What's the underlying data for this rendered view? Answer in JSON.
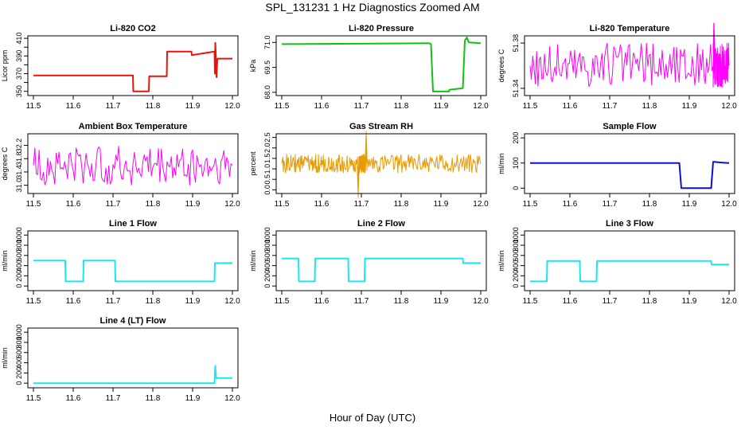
{
  "figure": {
    "title": "SPL_131231  1 Hz Diagnostics Zoomed AM",
    "xlabel": "Hour of Day (UTC)"
  },
  "chart_data": [
    {
      "id": "co2",
      "type": "line",
      "title": "Li-820 CO2",
      "xlabel": "",
      "ylabel": "Licor ppm",
      "color": "#e8140c",
      "noise": 0,
      "xlim": [
        11.5,
        12.0
      ],
      "xticks": [
        11.5,
        11.6,
        11.7,
        11.8,
        11.9,
        12.0
      ],
      "xtick_labels": [
        "11.5",
        "11.6",
        "11.7",
        "11.8",
        "11.9",
        "12.0"
      ],
      "ylim": [
        347,
        411
      ],
      "yticks": [
        350,
        360,
        370,
        380,
        390,
        400,
        410
      ],
      "ytick_labels": [
        "350",
        "",
        "370",
        "",
        "390",
        "",
        "410"
      ],
      "x": [
        11.5,
        11.75,
        11.751,
        11.79,
        11.791,
        11.835,
        11.836,
        11.897,
        11.898,
        11.955,
        11.956,
        11.957,
        11.958,
        11.96,
        11.962,
        11.963,
        12.0
      ],
      "y": [
        368,
        368,
        350,
        350,
        367,
        367,
        395,
        395,
        391,
        395,
        370,
        405,
        395,
        366,
        385,
        387,
        387
      ]
    },
    {
      "id": "pressure",
      "type": "line",
      "title": "Li-820 Pressure",
      "xlabel": "",
      "ylabel": "kPa",
      "color": "#12c212",
      "noise": 0,
      "xlim": [
        11.5,
        12.0
      ],
      "xticks": [
        11.5,
        11.6,
        11.7,
        11.8,
        11.9,
        12.0
      ],
      "xtick_labels": [
        "11.5",
        "11.6",
        "11.7",
        "11.8",
        "11.9",
        "12.0"
      ],
      "ylim": [
        67.9,
        71.3
      ],
      "yticks": [
        68.0,
        69.5,
        71.0
      ],
      "ytick_labels": [
        "68.0",
        "69.5",
        "71.0"
      ],
      "x": [
        11.5,
        11.87,
        11.875,
        11.88,
        11.92,
        11.921,
        11.955,
        11.96,
        11.965,
        11.97,
        12.0
      ],
      "y": [
        70.9,
        70.95,
        70.9,
        68.05,
        68.05,
        68.15,
        68.25,
        71.1,
        71.3,
        71.0,
        70.95
      ]
    },
    {
      "id": "li820_temp",
      "type": "line",
      "title": "Li-820 Temperature",
      "xlabel": "",
      "ylabel": "degrees C",
      "color": "#ff00ff",
      "noise": 0.02,
      "xlim": [
        11.5,
        12.0
      ],
      "xticks": [
        11.5,
        11.6,
        11.7,
        11.8,
        11.9,
        12.0
      ],
      "xtick_labels": [
        "11.5",
        "11.6",
        "11.7",
        "11.8",
        "11.9",
        "12.0"
      ],
      "ylim": [
        51.335,
        51.385
      ],
      "yticks": [
        51.34,
        51.38
      ],
      "ytick_labels": [
        "51.34",
        "51.38"
      ],
      "x": [
        11.5,
        11.96,
        11.962,
        11.964,
        12.0
      ],
      "y": [
        51.36,
        51.36,
        51.382,
        51.36,
        51.36
      ]
    },
    {
      "id": "box_temp",
      "type": "line",
      "title": "Ambient Box Temperature",
      "xlabel": "",
      "ylabel": "degrees C",
      "color": "#ff00ff",
      "noise": 0.6,
      "xlim": [
        11.5,
        12.0
      ],
      "xticks": [
        11.5,
        11.6,
        11.7,
        11.8,
        11.9,
        12.0
      ],
      "xtick_labels": [
        "11.5",
        "11.6",
        "11.7",
        "11.8",
        "11.9",
        "12.0"
      ],
      "ylim": [
        30.8,
        32.5
      ],
      "yticks": [
        31.0,
        31.4,
        31.8,
        32.2
      ],
      "ytick_labels": [
        "31.0",
        "31.4",
        "31.8",
        "32.2"
      ],
      "x": [
        11.5,
        12.0
      ],
      "y": [
        31.6,
        31.6
      ]
    },
    {
      "id": "rh",
      "type": "line",
      "title": "Gas Stream RH",
      "xlabel": "",
      "ylabel": "percent",
      "color": "#e89a00",
      "noise": 0.45,
      "xlim": [
        11.5,
        12.0
      ],
      "xticks": [
        11.5,
        11.6,
        11.7,
        11.8,
        11.9,
        12.0
      ],
      "xtick_labels": [
        "11.5",
        "11.6",
        "11.7",
        "11.8",
        "11.9",
        "12.0"
      ],
      "ylim": [
        -0.1,
        2.6
      ],
      "yticks": [
        0.0,
        0.5,
        1.0,
        1.5,
        2.0,
        2.5
      ],
      "ytick_labels": [
        "0.0",
        "0.5",
        "1.0",
        "1.5",
        "2.0",
        "2.5"
      ],
      "x": [
        11.5,
        11.69,
        11.692,
        11.694,
        11.71,
        11.712,
        11.714,
        12.0
      ],
      "y": [
        1.25,
        1.25,
        0.0,
        1.25,
        1.25,
        2.4,
        1.25,
        1.25
      ]
    },
    {
      "id": "sample_flow",
      "type": "line",
      "title": "Sample Flow",
      "xlabel": "",
      "ylabel": "ml/min",
      "color": "#1010c8",
      "noise": 0,
      "xlim": [
        11.5,
        12.0
      ],
      "xticks": [
        11.5,
        11.6,
        11.7,
        11.8,
        11.9,
        12.0
      ],
      "xtick_labels": [
        "11.5",
        "11.6",
        "11.7",
        "11.8",
        "11.9",
        "12.0"
      ],
      "ylim": [
        -15,
        210
      ],
      "yticks": [
        0,
        100,
        200
      ],
      "ytick_labels": [
        "0",
        "100",
        "200"
      ],
      "x": [
        11.5,
        11.875,
        11.88,
        11.955,
        11.96,
        11.98,
        12.0
      ],
      "y": [
        100,
        100,
        0,
        0,
        105,
        102,
        100
      ]
    },
    {
      "id": "line1",
      "type": "line",
      "title": "Line 1 Flow",
      "xlabel": "",
      "ylabel": "ml/min",
      "color": "#18e8ee",
      "noise": 0,
      "xlim": [
        11.5,
        12.0
      ],
      "xticks": [
        11.5,
        11.6,
        11.7,
        11.8,
        11.9,
        12.0
      ],
      "xtick_labels": [
        "11.5",
        "11.6",
        "11.7",
        "11.8",
        "11.9",
        "12.0"
      ],
      "ylim": [
        -60,
        1050
      ],
      "yticks": [
        0,
        200,
        400,
        600,
        800,
        1000
      ],
      "ytick_labels": [
        "0",
        "200",
        "400",
        "600",
        "800",
        "1000"
      ],
      "x": [
        11.5,
        11.58,
        11.581,
        11.625,
        11.626,
        11.705,
        11.706,
        11.955,
        11.956,
        12.0
      ],
      "y": [
        500,
        500,
        90,
        90,
        500,
        500,
        90,
        90,
        450,
        450
      ]
    },
    {
      "id": "line2",
      "type": "line",
      "title": "Line 2 Flow",
      "xlabel": "",
      "ylabel": "ml/min",
      "color": "#18e8ee",
      "noise": 0,
      "xlim": [
        11.5,
        12.0
      ],
      "xticks": [
        11.5,
        11.6,
        11.7,
        11.8,
        11.9,
        12.0
      ],
      "xtick_labels": [
        "11.5",
        "11.6",
        "11.7",
        "11.8",
        "11.9",
        "12.0"
      ],
      "ylim": [
        -60,
        1050
      ],
      "yticks": [
        0,
        200,
        400,
        600,
        800,
        1000
      ],
      "ytick_labels": [
        "0",
        "200",
        "400",
        "600",
        "800",
        "1000"
      ],
      "x": [
        11.5,
        11.542,
        11.543,
        11.583,
        11.584,
        11.667,
        11.668,
        11.708,
        11.709,
        11.955,
        11.956,
        12.0
      ],
      "y": [
        540,
        540,
        90,
        90,
        540,
        540,
        90,
        90,
        540,
        540,
        450,
        450
      ]
    },
    {
      "id": "line3",
      "type": "line",
      "title": "Line 3 Flow",
      "xlabel": "",
      "ylabel": "ml/min",
      "color": "#18e8ee",
      "noise": 0,
      "xlim": [
        11.5,
        12.0
      ],
      "xticks": [
        11.5,
        11.6,
        11.7,
        11.8,
        11.9,
        12.0
      ],
      "xtick_labels": [
        "11.5",
        "11.6",
        "11.7",
        "11.8",
        "11.9",
        "12.0"
      ],
      "ylim": [
        -60,
        1050
      ],
      "yticks": [
        0,
        200,
        400,
        600,
        800,
        1000
      ],
      "ytick_labels": [
        "0",
        "200",
        "400",
        "600",
        "800",
        "1000"
      ],
      "x": [
        11.5,
        11.542,
        11.543,
        11.625,
        11.626,
        11.667,
        11.668,
        11.955,
        11.956,
        12.0
      ],
      "y": [
        90,
        90,
        490,
        490,
        90,
        90,
        490,
        490,
        420,
        420
      ]
    },
    {
      "id": "line4",
      "type": "line",
      "title": "Line 4 (LT) Flow",
      "xlabel": "",
      "ylabel": "ml/min",
      "color": "#18e8ee",
      "noise": 0,
      "xlim": [
        11.5,
        12.0
      ],
      "xticks": [
        11.5,
        11.6,
        11.7,
        11.8,
        11.9,
        12.0
      ],
      "xtick_labels": [
        "11.5",
        "11.6",
        "11.7",
        "11.8",
        "11.9",
        "12.0"
      ],
      "ylim": [
        -60,
        1050
      ],
      "yticks": [
        0,
        200,
        400,
        600,
        800,
        1000
      ],
      "ytick_labels": [
        "0",
        "200",
        "400",
        "600",
        "800",
        "1000"
      ],
      "x": [
        11.5,
        11.955,
        11.957,
        11.959,
        11.962,
        12.0
      ],
      "y": [
        0,
        0,
        340,
        100,
        100,
        100
      ]
    }
  ]
}
